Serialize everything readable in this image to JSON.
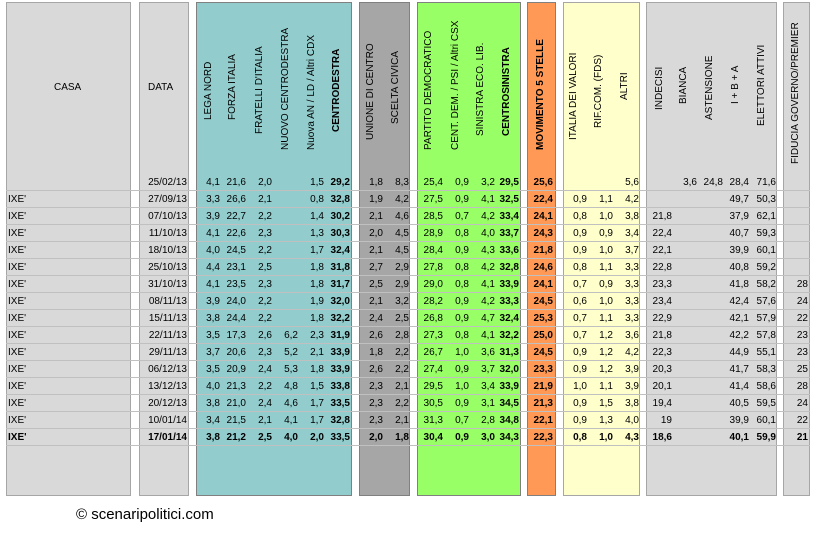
{
  "headers": {
    "casa": "CASA",
    "data": "DATA",
    "lega_nord": "LEGA NORD",
    "forza_italia": "FORZA ITALIA",
    "fratelli_italia": "FRATELLI D'ITALIA",
    "nuovo_cdx": "NUOVO  CENTRODESTRA",
    "nuova_an": "Nuova AN / LD / Altri CDX",
    "centrodestra": "CENTRODESTRA",
    "unione_centro": "UNIONE DI CENTRO",
    "scelta_civica": "SCELTA CIVICA",
    "pd": "PARTITO DEMOCRATICO",
    "cent_dem": "CENT. DEM. / PSI / Altri CSX",
    "sel": "SINISTRA ECO. LIB.",
    "centrosinistra": "CENTROSINISTRA",
    "m5s": "MOVIMENTO 5 STELLE",
    "idv": "ITALIA DEI VALORI",
    "rif_com": "RIF.COM. (FDS)",
    "altri": "ALTRI",
    "indecisi": "INDECISI",
    "bianca": "BIANCA",
    "astensione": "ASTENSIONE",
    "ibsa": "I + B + A",
    "elettori": "ELETTORI ATTIVI",
    "fiducia": "FIDUCIA GOVERNO/PREMIER"
  },
  "copyright": "© scenaripolitici.com",
  "chart_data": {
    "type": "table",
    "columns": [
      "CASA",
      "DATA",
      "LEGA NORD",
      "FORZA ITALIA",
      "FRATELLI D'ITALIA",
      "NUOVO  CENTRODESTRA",
      "Nuova AN / LD / Altri CDX",
      "CENTRODESTRA",
      "UNIONE DI CENTRO",
      "SCELTA CIVICA",
      "PARTITO DEMOCRATICO",
      "CENT. DEM. / PSI / Altri CSX",
      "SINISTRA ECO. LIB.",
      "CENTROSINISTRA",
      "MOVIMENTO 5 STELLE",
      "ITALIA DEI VALORI",
      "RIF.COM. (FDS)",
      "ALTRI",
      "INDECISI",
      "BIANCA",
      "ASTENSIONE",
      "I + B + A",
      "ELETTORI ATTIVI",
      "FIDUCIA GOVERNO/PREMIER"
    ],
    "rows": [
      [
        "",
        "25/02/13",
        "4,1",
        "21,6",
        "2,0",
        "",
        "1,5",
        "29,2",
        "1,8",
        "8,3",
        "25,4",
        "0,9",
        "3,2",
        "29,5",
        "25,6",
        "",
        "",
        "5,6",
        "",
        "3,6",
        "24,8",
        "28,4",
        "71,6",
        ""
      ],
      [
        "IXE'",
        "27/09/13",
        "3,3",
        "26,6",
        "2,1",
        "",
        "0,8",
        "32,8",
        "1,9",
        "4,2",
        "27,5",
        "0,9",
        "4,1",
        "32,5",
        "22,4",
        "0,9",
        "1,1",
        "4,2",
        "",
        "",
        "",
        "49,7",
        "50,3",
        ""
      ],
      [
        "IXE'",
        "07/10/13",
        "3,9",
        "22,7",
        "2,2",
        "",
        "1,4",
        "30,2",
        "2,1",
        "4,6",
        "28,5",
        "0,7",
        "4,2",
        "33,4",
        "24,1",
        "0,8",
        "1,0",
        "3,8",
        "21,8",
        "",
        "",
        "37,9",
        "62,1",
        ""
      ],
      [
        "IXE'",
        "11/10/13",
        "4,1",
        "22,6",
        "2,3",
        "",
        "1,3",
        "30,3",
        "2,0",
        "4,5",
        "28,9",
        "0,8",
        "4,0",
        "33,7",
        "24,3",
        "0,9",
        "0,9",
        "3,4",
        "22,4",
        "",
        "",
        "40,7",
        "59,3",
        ""
      ],
      [
        "IXE'",
        "18/10/13",
        "4,0",
        "24,5",
        "2,2",
        "",
        "1,7",
        "32,4",
        "2,1",
        "4,5",
        "28,4",
        "0,9",
        "4,3",
        "33,6",
        "21,8",
        "0,9",
        "1,0",
        "3,7",
        "22,1",
        "",
        "",
        "39,9",
        "60,1",
        ""
      ],
      [
        "IXE'",
        "25/10/13",
        "4,4",
        "23,1",
        "2,5",
        "",
        "1,8",
        "31,8",
        "2,7",
        "2,9",
        "27,8",
        "0,8",
        "4,2",
        "32,8",
        "24,6",
        "0,8",
        "1,1",
        "3,3",
        "22,8",
        "",
        "",
        "40,8",
        "59,2",
        ""
      ],
      [
        "IXE'",
        "31/10/13",
        "4,1",
        "23,5",
        "2,3",
        "",
        "1,8",
        "31,7",
        "2,5",
        "2,9",
        "29,0",
        "0,8",
        "4,1",
        "33,9",
        "24,1",
        "0,7",
        "0,9",
        "3,3",
        "23,3",
        "",
        "",
        "41,8",
        "58,2",
        "28"
      ],
      [
        "IXE'",
        "08/11/13",
        "3,9",
        "24,0",
        "2,2",
        "",
        "1,9",
        "32,0",
        "2,1",
        "3,2",
        "28,2",
        "0,9",
        "4,2",
        "33,3",
        "24,5",
        "0,6",
        "1,0",
        "3,3",
        "23,4",
        "",
        "",
        "42,4",
        "57,6",
        "24"
      ],
      [
        "IXE'",
        "15/11/13",
        "3,8",
        "24,4",
        "2,2",
        "",
        "1,8",
        "32,2",
        "2,4",
        "2,5",
        "26,8",
        "0,9",
        "4,7",
        "32,4",
        "25,3",
        "0,7",
        "1,1",
        "3,3",
        "22,9",
        "",
        "",
        "42,1",
        "57,9",
        "22"
      ],
      [
        "IXE'",
        "22/11/13",
        "3,5",
        "17,3",
        "2,6",
        "6,2",
        "2,3",
        "31,9",
        "2,6",
        "2,8",
        "27,3",
        "0,8",
        "4,1",
        "32,2",
        "25,0",
        "0,7",
        "1,2",
        "3,6",
        "21,8",
        "",
        "",
        "42,2",
        "57,8",
        "23"
      ],
      [
        "IXE'",
        "29/11/13",
        "3,7",
        "20,6",
        "2,3",
        "5,2",
        "2,1",
        "33,9",
        "1,8",
        "2,2",
        "26,7",
        "1,0",
        "3,6",
        "31,3",
        "24,5",
        "0,9",
        "1,2",
        "4,2",
        "22,3",
        "",
        "",
        "44,9",
        "55,1",
        "23"
      ],
      [
        "IXE'",
        "06/12/13",
        "3,5",
        "20,9",
        "2,4",
        "5,3",
        "1,8",
        "33,9",
        "2,6",
        "2,2",
        "27,4",
        "0,9",
        "3,7",
        "32,0",
        "23,3",
        "0,9",
        "1,2",
        "3,9",
        "20,3",
        "",
        "",
        "41,7",
        "58,3",
        "25"
      ],
      [
        "IXE'",
        "13/12/13",
        "4,0",
        "21,3",
        "2,2",
        "4,8",
        "1,5",
        "33,8",
        "2,3",
        "2,1",
        "29,5",
        "1,0",
        "3,4",
        "33,9",
        "21,9",
        "1,0",
        "1,1",
        "3,9",
        "20,1",
        "",
        "",
        "41,4",
        "58,6",
        "28"
      ],
      [
        "IXE'",
        "20/12/13",
        "3,8",
        "21,0",
        "2,4",
        "4,6",
        "1,7",
        "33,5",
        "2,3",
        "2,2",
        "30,5",
        "0,9",
        "3,1",
        "34,5",
        "21,3",
        "0,9",
        "1,5",
        "3,8",
        "19,4",
        "",
        "",
        "40,5",
        "59,5",
        "24"
      ],
      [
        "IXE'",
        "10/01/14",
        "3,4",
        "21,5",
        "2,1",
        "4,1",
        "1,7",
        "32,8",
        "2,3",
        "2,1",
        "31,3",
        "0,7",
        "2,8",
        "34,8",
        "22,1",
        "0,9",
        "1,3",
        "4,0",
        "19",
        "",
        "",
        "39,9",
        "60,1",
        "22"
      ],
      [
        "IXE'",
        "17/01/14",
        "3,8",
        "21,2",
        "2,5",
        "4,0",
        "2,0",
        "33,5",
        "2,0",
        "1,8",
        "30,4",
        "0,9",
        "3,0",
        "34,3",
        "22,3",
        "0,8",
        "1,0",
        "4,3",
        "18,6",
        "",
        "",
        "40,1",
        "59,9",
        "21"
      ]
    ]
  }
}
